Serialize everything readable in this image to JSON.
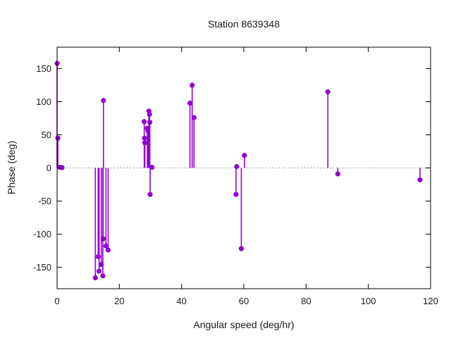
{
  "chart_data": {
    "type": "scatter",
    "style": "impulses+points",
    "title": "Station 8639348",
    "xlabel": "Angular speed (deg/hr)",
    "ylabel": "Phase (deg)",
    "xlim": [
      0,
      120
    ],
    "ylim": [
      -182.5,
      182.5
    ],
    "xticks": [
      0,
      20,
      40,
      60,
      80,
      100,
      120
    ],
    "yticks": [
      -150,
      -100,
      -50,
      0,
      50,
      100,
      150
    ],
    "zero_line": true,
    "grid": false,
    "legend": "none",
    "series": [
      {
        "name": "phase",
        "color": "#9400D3",
        "points": [
          [
            0.0,
            158
          ],
          [
            0.25,
            45
          ],
          [
            0.9,
            1
          ],
          [
            1.6,
            0.5
          ],
          [
            12.3,
            -166
          ],
          [
            13.2,
            -134
          ],
          [
            13.5,
            -156
          ],
          [
            14.2,
            -146
          ],
          [
            14.7,
            -163
          ],
          [
            14.8,
            -107
          ],
          [
            14.9,
            102
          ],
          [
            15.7,
            -118
          ],
          [
            16.4,
            -124
          ],
          [
            28.0,
            70
          ],
          [
            28.1,
            45
          ],
          [
            28.2,
            38
          ],
          [
            29.0,
            60
          ],
          [
            29.2,
            56
          ],
          [
            29.5,
            86
          ],
          [
            29.7,
            81
          ],
          [
            29.8,
            69
          ],
          [
            29.9,
            -40
          ],
          [
            30.5,
            1
          ],
          [
            42.7,
            98
          ],
          [
            43.4,
            125
          ],
          [
            44.0,
            76
          ],
          [
            57.5,
            -40
          ],
          [
            57.7,
            2
          ],
          [
            59.2,
            -122
          ],
          [
            60.2,
            19
          ],
          [
            87.0,
            115
          ],
          [
            90.2,
            -9
          ],
          [
            116.6,
            -18
          ]
        ]
      }
    ],
    "colors": {
      "series": "#9400D3",
      "frame": "#000000",
      "text": "#1a1a1a",
      "zero_line": "#555555",
      "background": "#ffffff"
    }
  }
}
